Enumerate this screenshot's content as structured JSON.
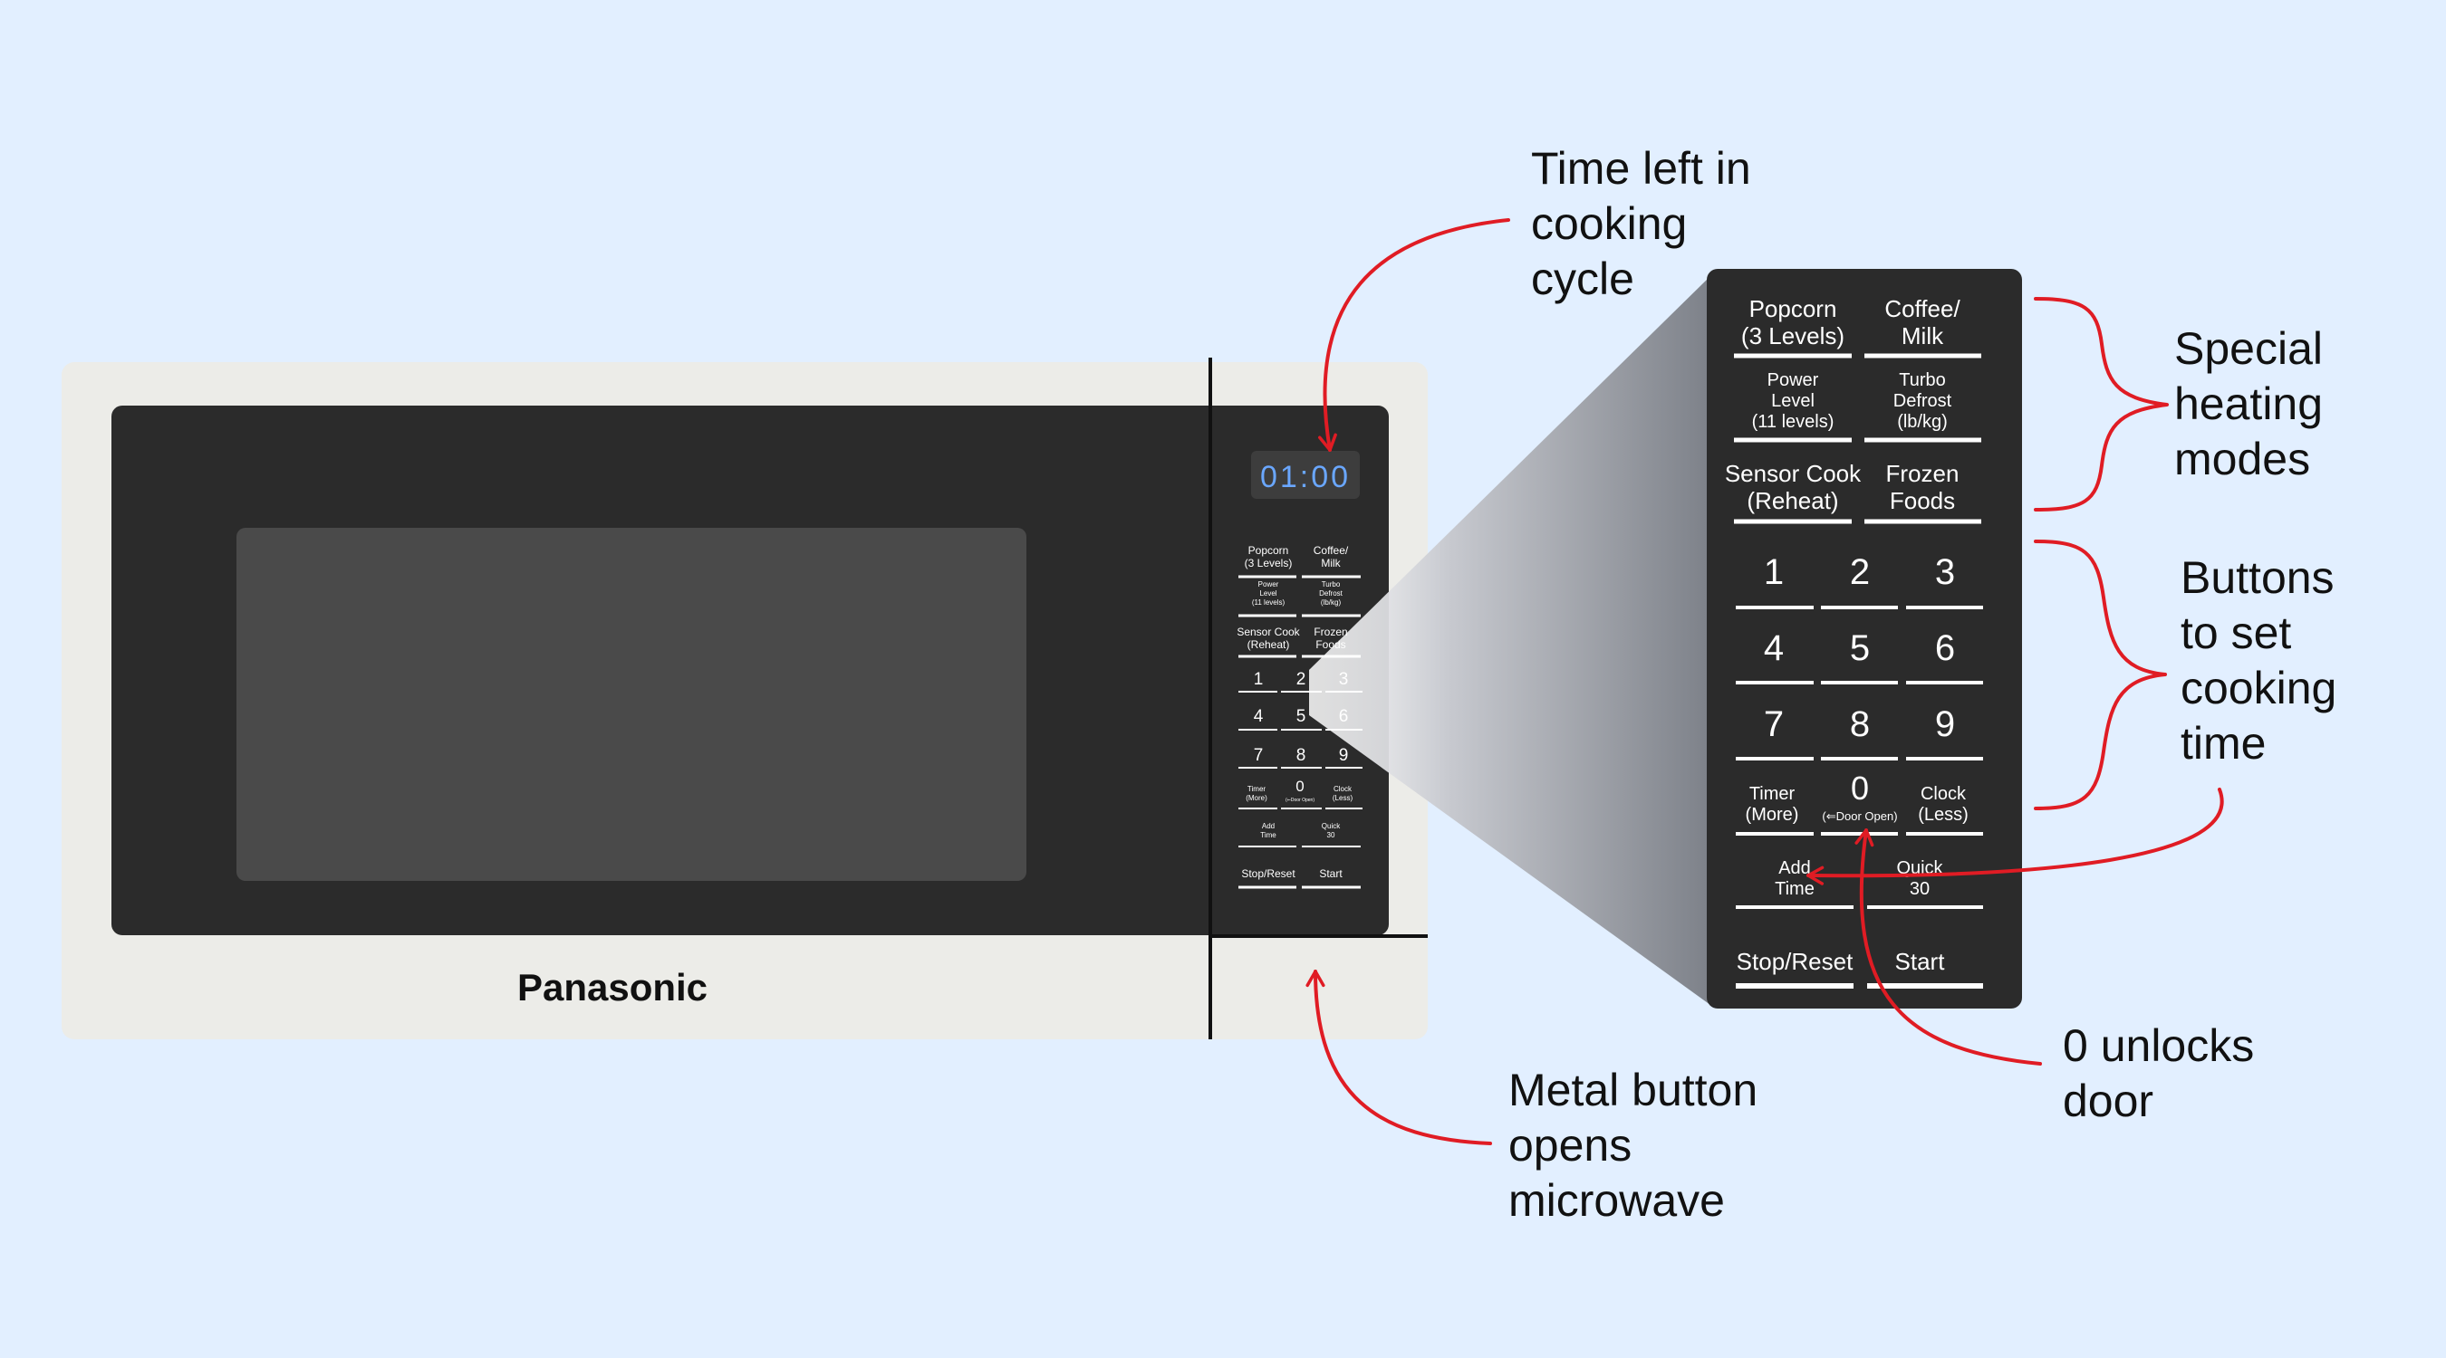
{
  "colors": {
    "background": "#e2efff",
    "microwave_body": "#ecece8",
    "panel": "#2b2b2b",
    "window": "#4a4a4a",
    "display_digits": "#6aa7ff",
    "annotation_arrow": "#e01c24",
    "button_text": "#ffffff"
  },
  "brand": "Panasonic",
  "display": {
    "time": "01:00"
  },
  "keypad": {
    "popcorn": {
      "line1": "Popcorn",
      "line2": "(3 Levels)"
    },
    "coffee": {
      "line1": "Coffee/",
      "line2": "Milk"
    },
    "power": {
      "line1": "Power",
      "line2": "Level",
      "line3": "(11 levels)"
    },
    "turbo": {
      "line1": "Turbo",
      "line2": "Defrost",
      "line3": "(lb/kg)"
    },
    "sensor": {
      "line1": "Sensor Cook",
      "line2": "(Reheat)"
    },
    "frozen": {
      "line1": "Frozen",
      "line2": "Foods"
    },
    "digits": [
      "1",
      "2",
      "3",
      "4",
      "5",
      "6",
      "7",
      "8",
      "9"
    ],
    "timer": {
      "line1": "Timer",
      "line2": "(More)"
    },
    "zero": {
      "digit": "0",
      "sub": "(⇐Door Open)"
    },
    "clock": {
      "line1": "Clock",
      "line2": "(Less)"
    },
    "add_time": {
      "line1": "Add",
      "line2": "Time"
    },
    "quick30": {
      "line1": "Quick",
      "line2": "30"
    },
    "stop_reset": "Stop/Reset",
    "start": "Start"
  },
  "annotations": {
    "time_left": [
      "Time left in",
      "cooking",
      "cycle"
    ],
    "special_modes": [
      "Special",
      "heating",
      "modes"
    ],
    "buttons_time": [
      "Buttons",
      "to set",
      "cooking",
      "time"
    ],
    "zero_unlocks": [
      "0 unlocks",
      "door"
    ],
    "metal_button": [
      "Metal button",
      "opens",
      "microwave"
    ]
  }
}
